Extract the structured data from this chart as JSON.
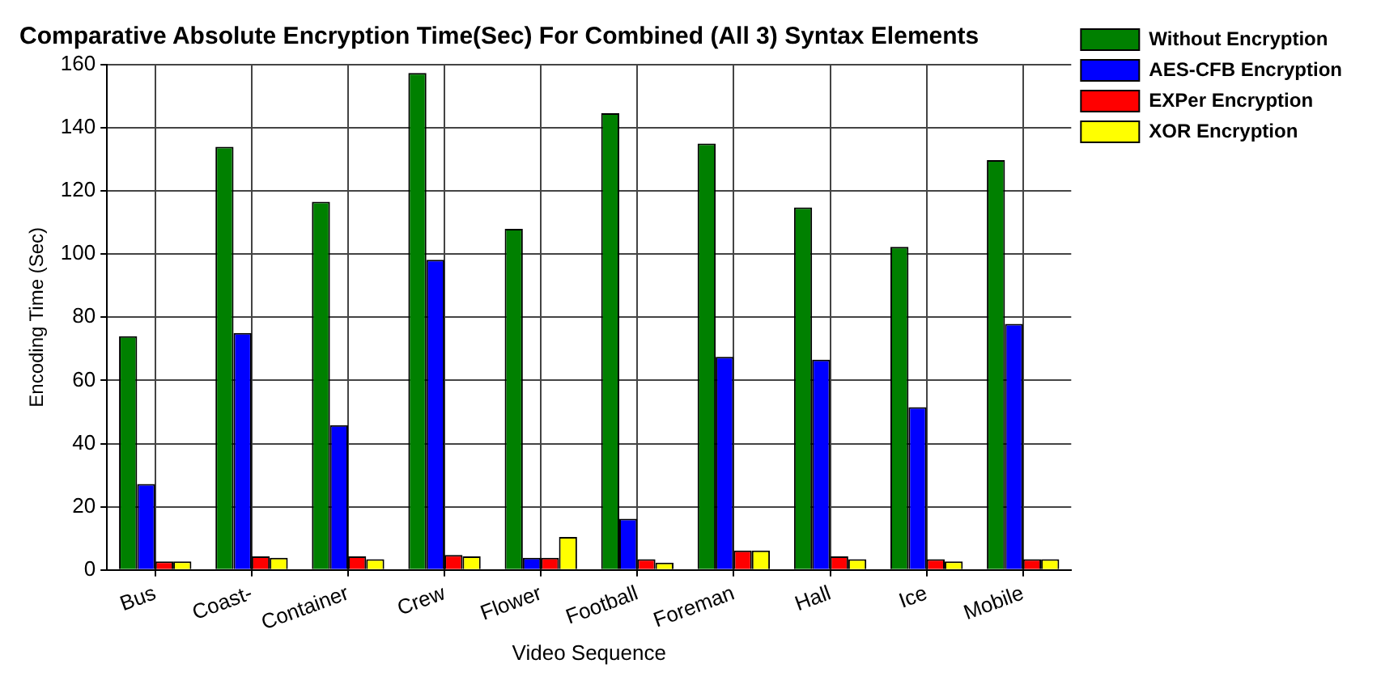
{
  "chart_data": {
    "type": "bar",
    "title": "Comparative Absolute Encryption Time(Sec) For Combined (All 3) Syntax Elements",
    "xlabel": "Video Sequence",
    "ylabel": "Encoding Time (Sec)",
    "categories": [
      "Bus",
      "Coast-",
      "Container",
      "Crew",
      "Flower",
      "Football",
      "Foreman",
      "Hall",
      "Ice",
      "Mobile"
    ],
    "series": [
      {
        "name": "Without Encryption",
        "color": "#008000",
        "values": [
          74,
          134,
          116.6,
          157.4,
          108,
          144.6,
          135,
          114.8,
          102.3,
          129.8
        ]
      },
      {
        "name": "AES-CFB Encryption",
        "color": "#0000ff",
        "values": [
          27.2,
          75,
          45.8,
          98.2,
          3.8,
          16.2,
          67.5,
          66.6,
          51.5,
          77.9
        ]
      },
      {
        "name": "EXPer Encryption",
        "color": "#ff0000",
        "values": [
          2.7,
          4.3,
          4.3,
          4.7,
          3.8,
          3.4,
          6.1,
          4.3,
          3.4,
          3.4
        ]
      },
      {
        "name": "XOR Encryption",
        "color": "#ffff00",
        "values": [
          2.7,
          3.8,
          3.4,
          4.3,
          10.4,
          2.3,
          6.1,
          3.4,
          2.7,
          3.4
        ]
      }
    ],
    "ylim": [
      0,
      160
    ],
    "yticks": [
      0,
      20,
      40,
      60,
      80,
      100,
      120,
      140,
      160
    ],
    "grid": true,
    "legend": "top right"
  }
}
